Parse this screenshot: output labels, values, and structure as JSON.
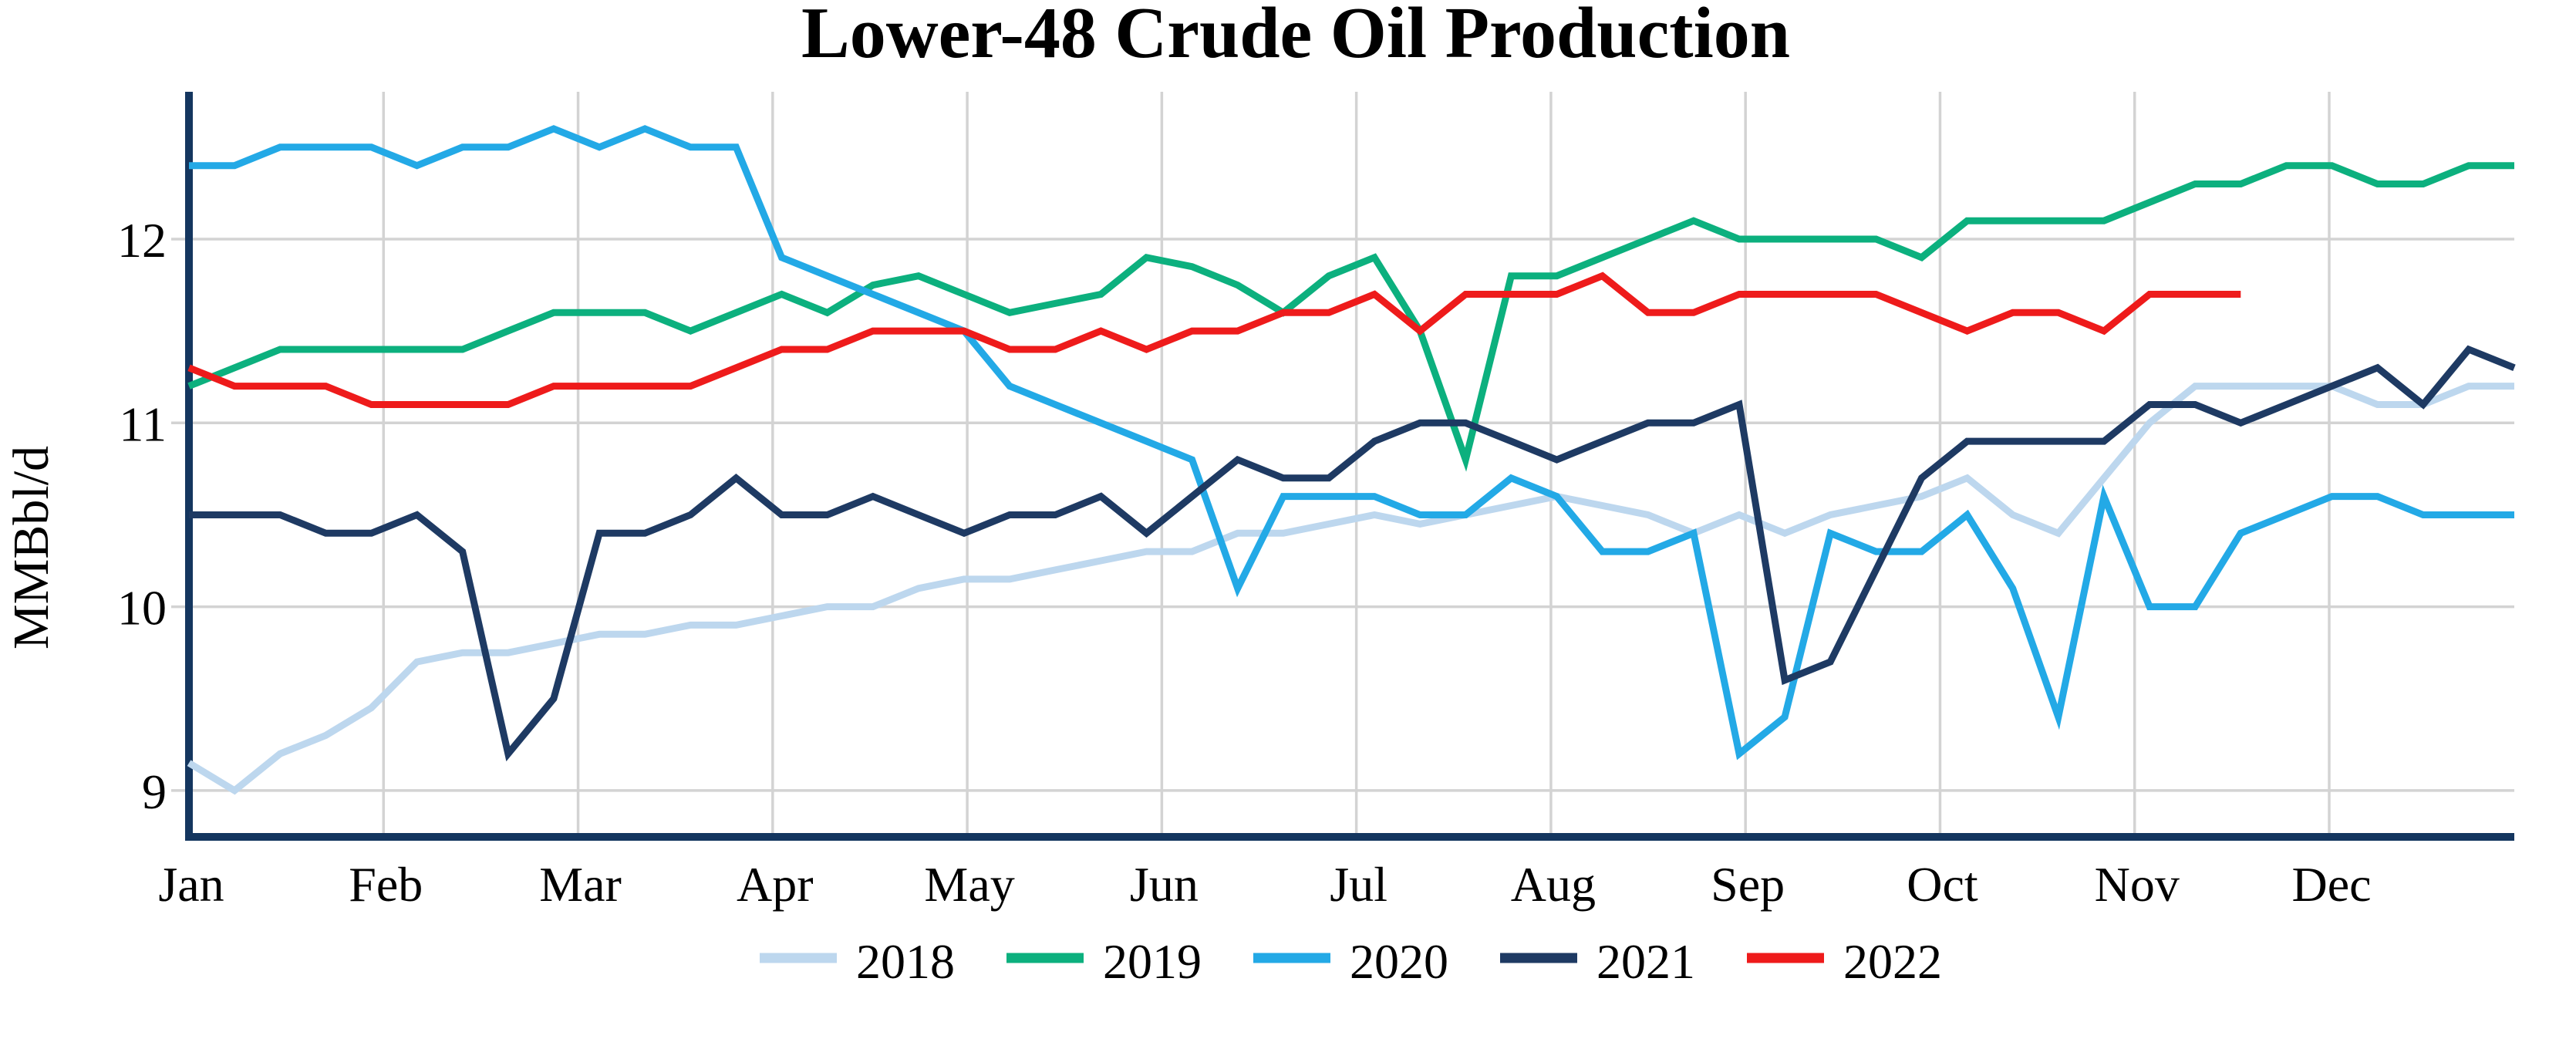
{
  "chart_data": {
    "type": "line",
    "title": "Lower-48 Crude Oil Production",
    "ylabel": "MMBbl/d",
    "xlabel": "",
    "x_cadence": "weekly",
    "x_tick_labels": [
      "Jan",
      "Feb",
      "Mar",
      "Apr",
      "May",
      "Jun",
      "Jul",
      "Aug",
      "Sep",
      "Oct",
      "Nov",
      "Dec"
    ],
    "y_ticks": [
      9,
      10,
      11,
      12
    ],
    "ylim": [
      8.75,
      12.8
    ],
    "grid": true,
    "legend_position": "bottom",
    "axis_color": "#14365F",
    "grid_color": "#D3D3D3",
    "series": [
      {
        "name": "2018",
        "color": "#BDD7EE",
        "values": [
          9.15,
          9.0,
          9.2,
          9.3,
          9.45,
          9.7,
          9.75,
          9.75,
          9.8,
          9.85,
          9.85,
          9.9,
          9.9,
          9.95,
          10.0,
          10.0,
          10.1,
          10.15,
          10.15,
          10.2,
          10.25,
          10.3,
          10.3,
          10.4,
          10.4,
          10.45,
          10.5,
          10.45,
          10.5,
          10.55,
          10.6,
          10.55,
          10.5,
          10.4,
          10.5,
          10.4,
          10.5,
          10.55,
          10.6,
          10.7,
          10.5,
          10.4,
          10.7,
          11.0,
          11.2,
          11.2,
          11.2,
          11.2,
          11.1,
          11.1,
          11.2,
          11.2
        ]
      },
      {
        "name": "2019",
        "color": "#0CB07E",
        "values": [
          11.2,
          11.3,
          11.4,
          11.4,
          11.4,
          11.4,
          11.4,
          11.5,
          11.6,
          11.6,
          11.6,
          11.5,
          11.6,
          11.7,
          11.6,
          11.75,
          11.8,
          11.7,
          11.6,
          11.65,
          11.7,
          11.9,
          11.85,
          11.75,
          11.6,
          11.8,
          11.9,
          11.5,
          10.8,
          11.8,
          11.8,
          11.9,
          12.0,
          12.1,
          12.0,
          12.0,
          12.0,
          12.0,
          11.9,
          12.1,
          12.1,
          12.1,
          12.1,
          12.2,
          12.3,
          12.3,
          12.4,
          12.4,
          12.3,
          12.3,
          12.4,
          12.4
        ]
      },
      {
        "name": "2020",
        "color": "#23A9E6",
        "values": [
          12.4,
          12.4,
          12.5,
          12.5,
          12.5,
          12.4,
          12.5,
          12.5,
          12.6,
          12.5,
          12.6,
          12.5,
          12.5,
          11.9,
          11.8,
          11.7,
          11.6,
          11.5,
          11.2,
          11.1,
          11.0,
          10.9,
          10.8,
          10.1,
          10.6,
          10.6,
          10.6,
          10.5,
          10.5,
          10.7,
          10.6,
          10.3,
          10.3,
          10.4,
          9.2,
          9.4,
          10.4,
          10.3,
          10.3,
          10.5,
          10.1,
          9.4,
          10.6,
          10.0,
          10.0,
          10.4,
          10.5,
          10.6,
          10.6,
          10.5,
          10.5,
          10.5
        ]
      },
      {
        "name": "2021",
        "color": "#1E3A63",
        "values": [
          10.5,
          10.5,
          10.5,
          10.4,
          10.4,
          10.5,
          10.3,
          9.2,
          9.5,
          10.4,
          10.4,
          10.5,
          10.7,
          10.5,
          10.5,
          10.6,
          10.5,
          10.4,
          10.5,
          10.5,
          10.6,
          10.4,
          10.6,
          10.8,
          10.7,
          10.7,
          10.9,
          11.0,
          11.0,
          10.9,
          10.8,
          10.9,
          11.0,
          11.0,
          11.1,
          9.6,
          9.7,
          10.2,
          10.7,
          10.9,
          10.9,
          10.9,
          10.9,
          11.1,
          11.1,
          11.0,
          11.1,
          11.2,
          11.3,
          11.1,
          11.4,
          11.3
        ]
      },
      {
        "name": "2022",
        "color": "#EE1B1B",
        "values": [
          11.3,
          11.2,
          11.2,
          11.2,
          11.1,
          11.1,
          11.1,
          11.1,
          11.2,
          11.2,
          11.2,
          11.2,
          11.3,
          11.4,
          11.4,
          11.5,
          11.5,
          11.5,
          11.4,
          11.4,
          11.5,
          11.4,
          11.5,
          11.5,
          11.6,
          11.6,
          11.7,
          11.5,
          11.7,
          11.7,
          11.7,
          11.8,
          11.6,
          11.6,
          11.7,
          11.7,
          11.7,
          11.7,
          11.6,
          11.5,
          11.6,
          11.6,
          11.5,
          11.7,
          11.7,
          11.7
        ]
      }
    ]
  }
}
